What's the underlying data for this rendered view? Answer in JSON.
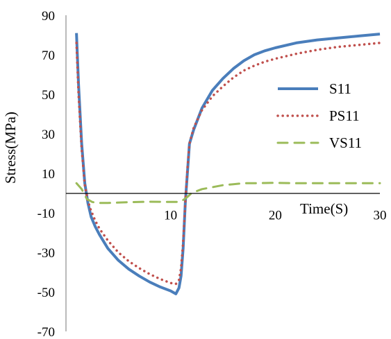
{
  "chart_data": {
    "type": "line",
    "title": "",
    "xlabel": "Time(S)",
    "ylabel": "Stress(MPa)",
    "xlim": [
      0,
      30
    ],
    "ylim": [
      -70,
      90
    ],
    "x_ticks": [
      "10",
      "20",
      "30"
    ],
    "y_ticks": [
      "90",
      "70",
      "50",
      "30",
      "10",
      "-10",
      "-30",
      "-50",
      "-70"
    ],
    "grid": false,
    "legend_position": "right",
    "series": [
      {
        "name": "S11",
        "color": "#4a7ebb",
        "style": "solid",
        "x": [
          1.0,
          1.2,
          1.5,
          1.8,
          2.1,
          2.4,
          2.8,
          3.2,
          4,
          5,
          6,
          7,
          8,
          9,
          10,
          10.5,
          10.8,
          11.0,
          11.2,
          11.4,
          11.6,
          11.8,
          12.2,
          13,
          14,
          15,
          16,
          17,
          18,
          19,
          20,
          22,
          24,
          26,
          28,
          30
        ],
        "y": [
          81,
          55,
          25,
          5,
          -5,
          -12,
          -17,
          -21,
          -28,
          -34,
          -38.5,
          -42,
          -45,
          -47.5,
          -49.5,
          -51,
          -48,
          -42,
          -28,
          -5,
          10,
          25,
          32,
          43,
          52,
          58,
          63,
          67,
          70,
          72,
          73.5,
          76,
          77.5,
          78.5,
          79.5,
          80.5
        ]
      },
      {
        "name": "PS11",
        "color": "#c0504d",
        "style": "dotted",
        "x": [
          1.0,
          1.2,
          1.5,
          1.8,
          2.1,
          2.4,
          2.8,
          3.2,
          4,
          5,
          6,
          7,
          8,
          9,
          10,
          10.5,
          10.8,
          11.0,
          11.2,
          11.4,
          11.6,
          11.8,
          12.2,
          13,
          14,
          15,
          16,
          17,
          18,
          19,
          20,
          22,
          24,
          26,
          28,
          30
        ],
        "y": [
          76,
          50,
          22,
          4,
          -4,
          -9,
          -14,
          -18,
          -24,
          -30,
          -34.5,
          -38,
          -41,
          -43.5,
          -45.5,
          -46,
          -44,
          -38,
          -25,
          -5,
          12,
          25,
          33,
          42,
          49,
          54,
          58.5,
          62,
          64.5,
          66.5,
          68,
          70.5,
          72.5,
          74,
          75,
          76
        ]
      },
      {
        "name": "VS11",
        "color": "#9bbb59",
        "style": "dashed",
        "x": [
          1.0,
          1.5,
          2.0,
          2.5,
          3,
          4,
          6,
          8,
          10,
          10.8,
          11.2,
          11.6,
          12,
          13,
          14,
          15,
          16,
          17,
          18,
          20,
          22,
          24,
          26,
          28,
          30
        ],
        "y": [
          5,
          2,
          -3,
          -4.5,
          -5,
          -5,
          -4.6,
          -4.4,
          -4.5,
          -4.5,
          -3.5,
          -2,
          0,
          2,
          3,
          4,
          4.5,
          5,
          5,
          5.2,
          5,
          5,
          5,
          5,
          5
        ]
      }
    ]
  }
}
